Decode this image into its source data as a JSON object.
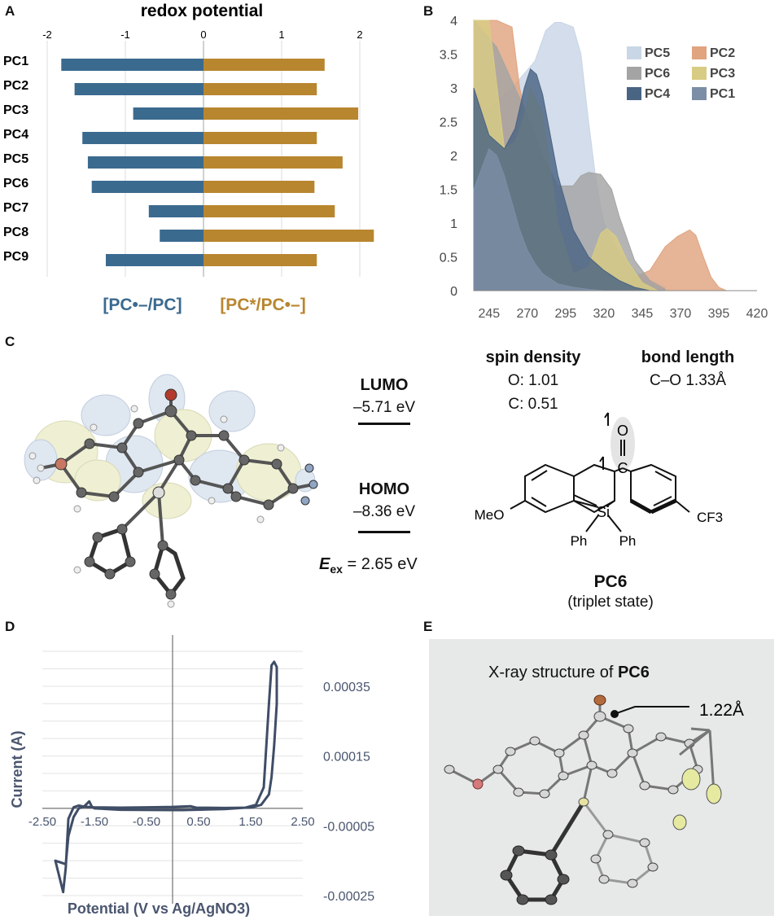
{
  "panels": {
    "a": "A",
    "b": "B",
    "c": "C",
    "d": "D",
    "e": "E"
  },
  "panel_a": {
    "chart_data": {
      "type": "bar",
      "title": "redox potential",
      "categories": [
        "PC1",
        "PC2",
        "PC3",
        "PC4",
        "PC5",
        "PC6",
        "PC7",
        "PC8",
        "PC9"
      ],
      "xlim": [
        -2,
        2
      ],
      "x_ticks": [
        "-2",
        "-1",
        "0",
        "1",
        "2"
      ],
      "grid": true,
      "series": [
        {
          "name": "[PC•–/PC]",
          "color": "#3b6a8f",
          "values": [
            -1.82,
            -1.65,
            -0.9,
            -1.55,
            -1.48,
            -1.43,
            -0.7,
            -0.56,
            -1.25
          ]
        },
        {
          "name": "[PC*/PC•–]",
          "color": "#b8862f",
          "values": [
            1.55,
            1.45,
            1.98,
            1.45,
            1.78,
            1.42,
            1.68,
            2.18,
            1.45
          ]
        }
      ],
      "legend": "bottom"
    }
  },
  "panel_b": {
    "chart_data": {
      "type": "area",
      "xlim": [
        235,
        420
      ],
      "ylim": [
        0,
        4
      ],
      "x_ticks": [
        "245",
        "270",
        "295",
        "320",
        "345",
        "370",
        "395",
        "420"
      ],
      "y_ticks": [
        "0",
        "0.5",
        "1",
        "1.5",
        "2",
        "2.5",
        "3",
        "3.5",
        "4"
      ],
      "legend": "top-right",
      "series": [
        {
          "name": "PC5",
          "color": "#c9d6e6",
          "x": [
            235,
            260,
            275,
            282,
            288,
            292,
            300,
            305,
            310,
            315,
            320,
            330,
            340,
            350,
            360
          ],
          "y": [
            2.5,
            3.0,
            3.4,
            3.85,
            3.97,
            3.97,
            3.9,
            3.5,
            2.5,
            1.6,
            1.0,
            0.55,
            0.3,
            0.15,
            0.05
          ]
        },
        {
          "name": "PC2",
          "color": "#e0a47f",
          "x": [
            235,
            250,
            260,
            265,
            270,
            275,
            290,
            330,
            350,
            360,
            368,
            376,
            380,
            385,
            390,
            395,
            400
          ],
          "y": [
            4.0,
            4.0,
            3.9,
            3.0,
            2.5,
            2.0,
            0.5,
            0.1,
            0.3,
            0.65,
            0.8,
            0.9,
            0.82,
            0.5,
            0.2,
            0.05,
            0.0
          ]
        },
        {
          "name": "PC6",
          "color": "#a4a4a4",
          "x": [
            235,
            250,
            260,
            270,
            280,
            290,
            300,
            305,
            310,
            318,
            325,
            330,
            340,
            350,
            360
          ],
          "y": [
            4.0,
            3.6,
            3.1,
            2.6,
            2.0,
            1.55,
            1.55,
            1.7,
            1.75,
            1.72,
            1.5,
            1.1,
            0.45,
            0.15,
            0.02
          ]
        },
        {
          "name": "PC3",
          "color": "#d8cc84",
          "x": [
            235,
            245,
            255,
            262,
            268,
            272,
            280,
            290,
            300,
            310,
            318,
            322,
            328,
            335,
            345,
            355
          ],
          "y": [
            4.0,
            4.0,
            2.1,
            2.2,
            2.6,
            3.0,
            2.6,
            1.0,
            0.25,
            0.35,
            0.85,
            0.92,
            0.8,
            0.45,
            0.12,
            0.0
          ]
        },
        {
          "name": "PC4",
          "color": "#4a6483",
          "x": [
            235,
            245,
            255,
            262,
            268,
            272,
            276,
            280,
            290,
            300,
            310,
            320,
            330,
            340,
            350
          ],
          "y": [
            3.0,
            2.3,
            2.1,
            2.4,
            3.0,
            3.28,
            3.2,
            2.9,
            1.7,
            0.9,
            0.5,
            0.3,
            0.15,
            0.05,
            0.0
          ]
        },
        {
          "name": "PC1",
          "color": "#7b8ea5",
          "x": [
            235,
            240,
            245,
            250,
            255,
            260,
            265,
            270,
            275,
            280,
            290,
            300,
            310,
            320,
            330
          ],
          "y": [
            1.5,
            1.8,
            2.1,
            2.0,
            1.7,
            1.3,
            0.9,
            0.6,
            0.4,
            0.25,
            0.1,
            0.05,
            0.02,
            0.0,
            0.0
          ]
        }
      ]
    }
  },
  "panel_c": {
    "lumo_label": "LUMO",
    "lumo_value": "–5.71 eV",
    "homo_label": "HOMO",
    "homo_value": "–8.36 eV",
    "eex_symbol": "E",
    "eex_sub": "ex",
    "eex_value": " = 2.65 eV",
    "spin_title": "spin density",
    "spin_o": "O: 1.01",
    "spin_c": "C: 0.51",
    "bond_title": "bond length",
    "bond_value": "C–O 1.33Å",
    "mol_name": "PC6",
    "mol_state": "(triplet state)",
    "atoms": {
      "o": "O",
      "c": "C",
      "si": "Si",
      "meo": "MeO",
      "cf3": "CF3",
      "ph1": "Ph",
      "ph2": "Ph"
    }
  },
  "panel_d": {
    "chart_data": {
      "type": "line",
      "xlabel": "Potential (V vs Ag/AgNO3)",
      "ylabel": "Current (A)",
      "xlim": [
        -2.5,
        2.5
      ],
      "ylim": [
        -0.00025,
        0.00045
      ],
      "x_ticks": [
        "-2.50",
        "-1.50",
        "-0.50",
        "0.50",
        "1.50",
        "2.50"
      ],
      "y_ticks": [
        "0.00035",
        "0.00015",
        "-0.00005",
        "-0.00025"
      ],
      "grid": true,
      "series": [
        {
          "name": "",
          "color": "#3f4d66",
          "x": [
            0.2,
            0.6,
            1.0,
            1.4,
            1.6,
            1.75,
            1.8,
            1.85,
            1.9,
            1.95,
            2.0,
            2.0,
            1.95,
            1.9,
            1.85,
            1.7,
            1.5,
            1.0,
            0.45,
            0.35,
            0.0,
            -0.5,
            -1.0,
            -1.5,
            -1.7,
            -1.8,
            -1.9,
            -2.0,
            -2.05,
            -2.1,
            -2.25,
            -2.05,
            -2.0,
            -1.9,
            -1.8,
            -1.7,
            -1.6,
            -1.55,
            -1.5,
            -1.0,
            0.0,
            0.2
          ],
          "y": [
            -5e-06,
            -3.5e-06,
            -2e-06,
            2e-06,
            1e-05,
            6e-05,
            0.00018,
            0.0003,
            0.00041,
            0.00042,
            0.000405,
            0.0003,
            0.00018,
            9e-05,
            4e-05,
            1e-05,
            2e-06,
            1e-06,
            2e-06,
            6e-06,
            4e-06,
            3e-06,
            2e-06,
            3e-06,
            5e-06,
            8e-06,
            3e-06,
            -3e-05,
            -0.00017,
            -0.00024,
            -0.00015,
            -0.00016,
            -8e-05,
            -2.5e-05,
            0.0,
            5e-06,
            2e-05,
            5e-06,
            0.0,
            -4e-06,
            -5e-06,
            -5e-06
          ]
        }
      ]
    }
  },
  "panel_e": {
    "title_prefix": "X-ray structure of ",
    "title_bold": "PC6",
    "bond_label": "1.22Å"
  }
}
